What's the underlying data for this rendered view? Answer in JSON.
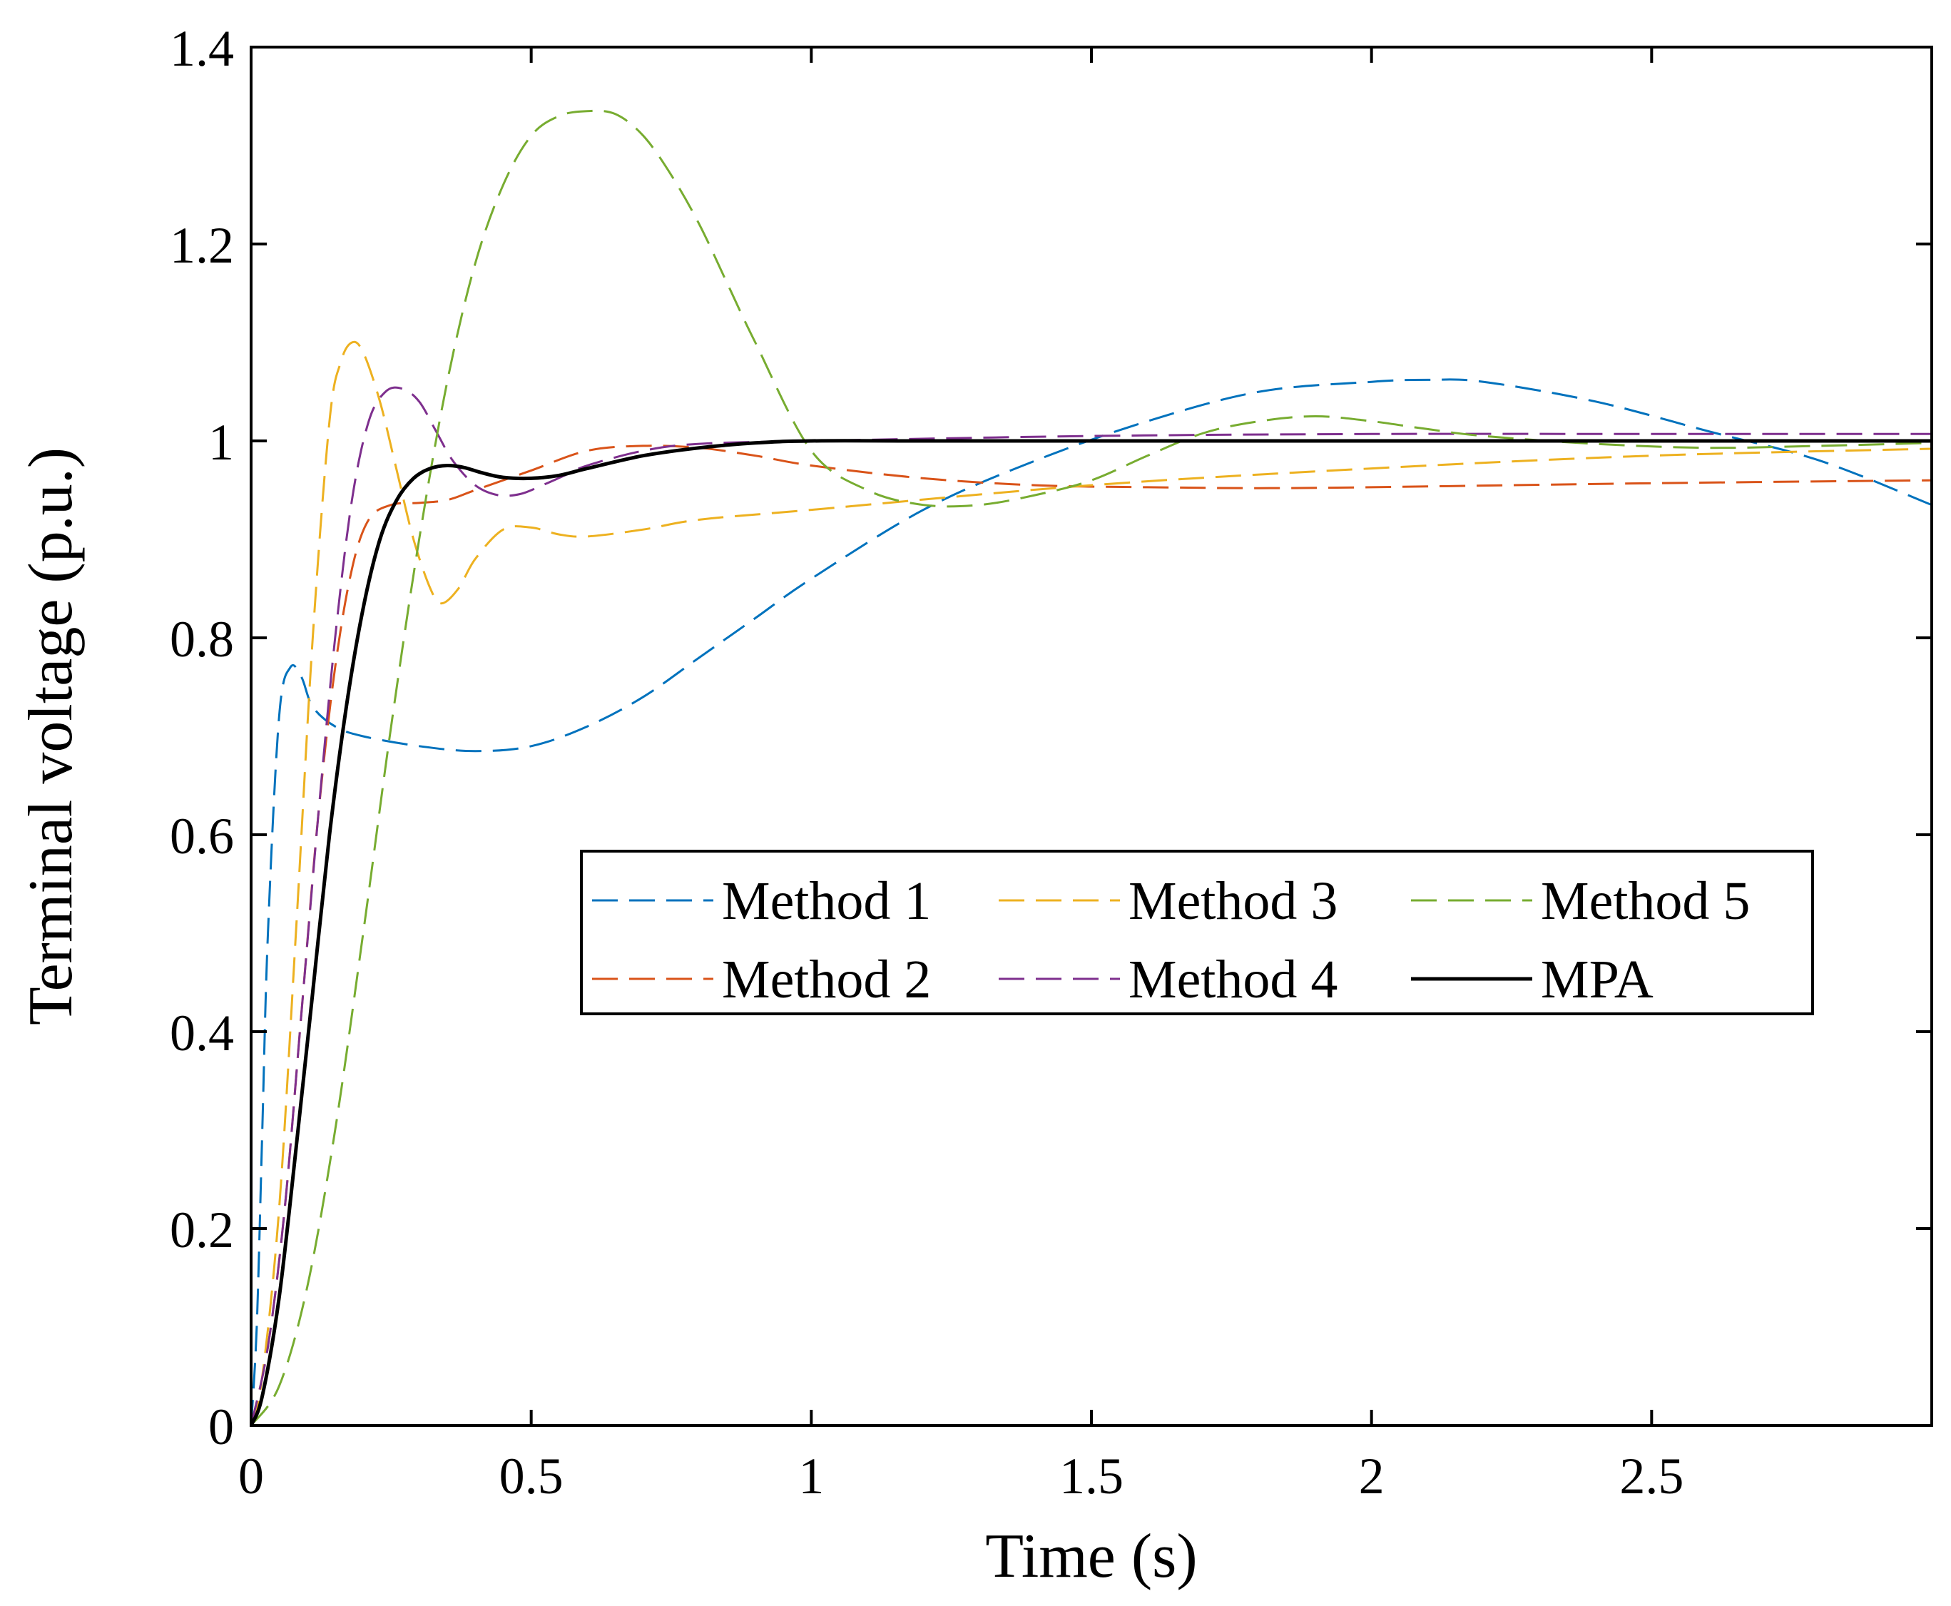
{
  "chart_data": {
    "type": "line",
    "title": "",
    "xlabel": "Time (s)",
    "ylabel": "Terminal voltage (p.u.)",
    "xlim": [
      0,
      3
    ],
    "ylim": [
      0,
      1.4
    ],
    "xticks": [
      0,
      0.5,
      1,
      1.5,
      2,
      2.5
    ],
    "xtick_labels": [
      "0",
      "0.5",
      "1",
      "1.5",
      "2",
      "2.5"
    ],
    "yticks": [
      0,
      0.2,
      0.4,
      0.6,
      0.8,
      1,
      1.2,
      1.4
    ],
    "ytick_labels": [
      "0",
      "0.2",
      "0.4",
      "0.6",
      "0.8",
      "1",
      "1.2",
      "1.4"
    ],
    "grid": false,
    "legend_position": "center-right",
    "series": [
      {
        "name": "Method 1",
        "color": "#0072BD",
        "dashed": true,
        "x": [
          0,
          0.01,
          0.02,
          0.03,
          0.05,
          0.07,
          0.09,
          0.11,
          0.15,
          0.2,
          0.3,
          0.4,
          0.5,
          0.6,
          0.7,
          0.8,
          0.9,
          1.0,
          1.2,
          1.4,
          1.6,
          1.8,
          2.0,
          2.1,
          2.2,
          2.4,
          2.6,
          2.8,
          3.0
        ],
        "y": [
          0,
          0.1,
          0.3,
          0.5,
          0.72,
          0.77,
          0.76,
          0.73,
          0.71,
          0.7,
          0.69,
          0.685,
          0.69,
          0.71,
          0.74,
          0.78,
          0.82,
          0.86,
          0.93,
          0.98,
          1.02,
          1.05,
          1.06,
          1.062,
          1.06,
          1.04,
          1.01,
          0.98,
          0.935
        ]
      },
      {
        "name": "Method 2",
        "color": "#D95319",
        "dashed": true,
        "x": [
          0,
          0.03,
          0.06,
          0.09,
          0.12,
          0.15,
          0.18,
          0.21,
          0.25,
          0.3,
          0.35,
          0.4,
          0.5,
          0.6,
          0.7,
          0.8,
          0.9,
          1.0,
          1.2,
          1.4,
          1.6,
          1.8,
          2.0,
          2.5,
          3.0
        ],
        "y": [
          0,
          0.08,
          0.22,
          0.42,
          0.62,
          0.77,
          0.87,
          0.92,
          0.935,
          0.937,
          0.94,
          0.95,
          0.97,
          0.99,
          0.995,
          0.993,
          0.985,
          0.975,
          0.962,
          0.955,
          0.953,
          0.952,
          0.953,
          0.957,
          0.96
        ]
      },
      {
        "name": "Method 3",
        "color": "#EDB120",
        "dashed": true,
        "x": [
          0,
          0.02,
          0.05,
          0.08,
          0.11,
          0.14,
          0.16,
          0.18,
          0.2,
          0.23,
          0.26,
          0.29,
          0.32,
          0.34,
          0.37,
          0.4,
          0.45,
          0.5,
          0.55,
          0.6,
          0.7,
          0.8,
          1.0,
          1.5,
          2.0,
          2.5,
          3.0
        ],
        "y": [
          0,
          0.05,
          0.22,
          0.5,
          0.8,
          1.02,
          1.08,
          1.1,
          1.09,
          1.04,
          0.97,
          0.9,
          0.85,
          0.835,
          0.85,
          0.88,
          0.91,
          0.912,
          0.905,
          0.903,
          0.91,
          0.92,
          0.93,
          0.955,
          0.972,
          0.985,
          0.992
        ]
      },
      {
        "name": "Method 4",
        "color": "#7E2F8E",
        "dashed": true,
        "x": [
          0,
          0.03,
          0.06,
          0.09,
          0.12,
          0.15,
          0.18,
          0.21,
          0.24,
          0.27,
          0.3,
          0.33,
          0.36,
          0.4,
          0.44,
          0.48,
          0.52,
          0.56,
          0.6,
          0.7,
          0.8,
          1.0,
          1.5,
          2.0,
          2.5,
          3.0
        ],
        "y": [
          0,
          0.08,
          0.22,
          0.42,
          0.62,
          0.8,
          0.94,
          1.02,
          1.05,
          1.053,
          1.04,
          1.01,
          0.98,
          0.955,
          0.945,
          0.946,
          0.955,
          0.965,
          0.975,
          0.99,
          0.997,
          1.0,
          1.005,
          1.007,
          1.007,
          1.007
        ]
      },
      {
        "name": "Method 5",
        "color": "#77AC30",
        "dashed": true,
        "x": [
          0,
          0.05,
          0.1,
          0.15,
          0.2,
          0.25,
          0.3,
          0.35,
          0.4,
          0.45,
          0.5,
          0.55,
          0.6,
          0.65,
          0.7,
          0.75,
          0.8,
          0.85,
          0.9,
          1.0,
          1.1,
          1.2,
          1.3,
          1.4,
          1.5,
          1.6,
          1.7,
          1.8,
          1.9,
          2.0,
          2.1,
          2.2,
          2.4,
          2.6,
          2.8,
          3.0
        ],
        "y": [
          0,
          0.04,
          0.14,
          0.3,
          0.5,
          0.71,
          0.9,
          1.06,
          1.18,
          1.26,
          1.31,
          1.33,
          1.335,
          1.332,
          1.31,
          1.27,
          1.22,
          1.16,
          1.1,
          0.99,
          0.95,
          0.935,
          0.935,
          0.945,
          0.96,
          0.985,
          1.008,
          1.02,
          1.025,
          1.02,
          1.012,
          1.005,
          0.997,
          0.993,
          0.995,
          0.998
        ]
      },
      {
        "name": "MPA",
        "color": "#000000",
        "dashed": false,
        "x": [
          0,
          0.02,
          0.05,
          0.08,
          0.11,
          0.14,
          0.17,
          0.2,
          0.23,
          0.26,
          0.29,
          0.32,
          0.35,
          0.38,
          0.41,
          0.45,
          0.5,
          0.55,
          0.6,
          0.7,
          0.8,
          0.9,
          1.0,
          1.2,
          1.5,
          2.0,
          2.5,
          3.0
        ],
        "y": [
          0,
          0.03,
          0.13,
          0.28,
          0.44,
          0.6,
          0.73,
          0.83,
          0.9,
          0.94,
          0.962,
          0.972,
          0.975,
          0.973,
          0.968,
          0.963,
          0.962,
          0.965,
          0.972,
          0.985,
          0.993,
          0.998,
          1.0,
          1.0,
          1.0,
          1.0,
          1.0,
          1.0
        ]
      }
    ]
  }
}
